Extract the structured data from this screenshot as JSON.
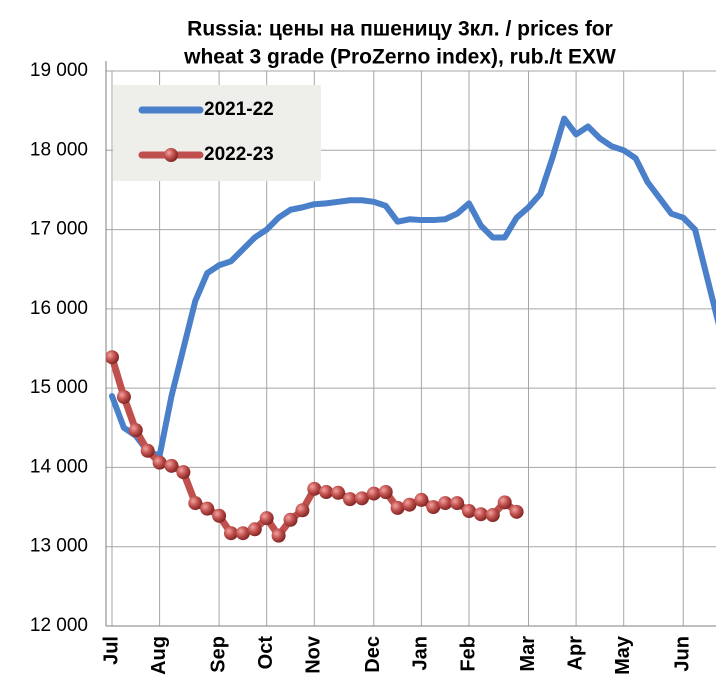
{
  "chart_data": {
    "type": "line",
    "title": [
      "Russia: цены на пшеницу 3кл. / prices for",
      "wheat 3 grade (ProZerno index), rub./t EXW"
    ],
    "categories": [
      "Jul",
      null,
      null,
      null,
      "Aug",
      null,
      null,
      null,
      null,
      "Sep",
      null,
      null,
      null,
      "Oct",
      null,
      null,
      null,
      "Nov",
      null,
      null,
      null,
      null,
      "Dec",
      null,
      null,
      null,
      "Jan",
      null,
      null,
      null,
      "Feb",
      null,
      null,
      null,
      null,
      "Mar",
      null,
      null,
      null,
      "Apr",
      null,
      null,
      null,
      "May",
      null,
      null,
      null,
      null,
      "Jun",
      null,
      null,
      null
    ],
    "series": [
      {
        "name": "2021-22",
        "color": "#4a7fc9",
        "values": [
          14900,
          14500,
          14400,
          14200,
          14150,
          14900,
          15500,
          16100,
          16450,
          16550,
          16600,
          16750,
          16900,
          17000,
          17150,
          17250,
          17280,
          17320,
          17330,
          17350,
          17370,
          17370,
          17350,
          17300,
          17100,
          17130,
          17120,
          17120,
          17130,
          17200,
          17330,
          17050,
          16900,
          16900,
          17150,
          17280,
          17450,
          17900,
          18400,
          18200,
          18300,
          18150,
          18050,
          18000,
          17900,
          17600,
          17400,
          17200,
          17150,
          17000,
          16400,
          15800
        ]
      },
      {
        "name": "2022-23",
        "color": "#c0504d",
        "values": [
          15390,
          14890,
          14470,
          14210,
          14060,
          14020,
          13940,
          13550,
          13480,
          13390,
          13170,
          13170,
          13220,
          13360,
          13140,
          13340,
          13460,
          13730,
          13690,
          13680,
          13600,
          13610,
          13670,
          13690,
          13490,
          13530,
          13590,
          13500,
          13550,
          13550,
          13450,
          13410,
          13400,
          13560,
          13440,
          null,
          null,
          null,
          null,
          null,
          null,
          null,
          null,
          null,
          null,
          null,
          null,
          null,
          null,
          null,
          null,
          null
        ]
      }
    ],
    "ylim": [
      12000,
      19000
    ],
    "yticks": [
      {
        "value": 12000,
        "label": "12 000"
      },
      {
        "value": 13000,
        "label": "13 000"
      },
      {
        "value": 14000,
        "label": "14 000"
      },
      {
        "value": 15000,
        "label": "15 000"
      },
      {
        "value": 16000,
        "label": "16 000"
      },
      {
        "value": 17000,
        "label": "17 000"
      },
      {
        "value": 18000,
        "label": "18 000"
      },
      {
        "value": 19000,
        "label": "19 000"
      }
    ],
    "grid": true,
    "legend": "upper left"
  }
}
